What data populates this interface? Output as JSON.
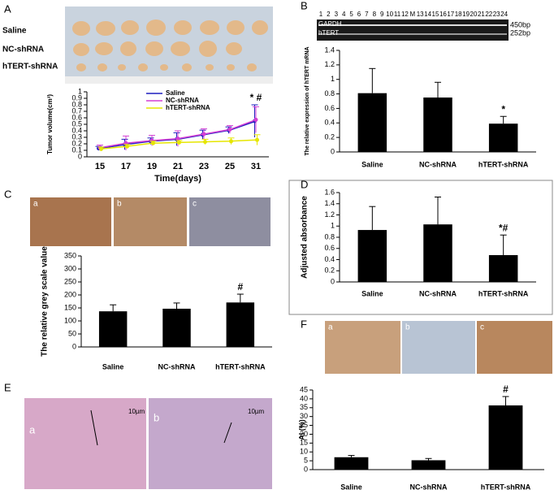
{
  "chart_data": [
    {
      "type": "line",
      "xlabel": "Time(days)",
      "ylabel": "Tumor volume(cm³)",
      "categories": [
        "15",
        "17",
        "19",
        "21",
        "23",
        "25",
        "31"
      ],
      "ylim": [
        0,
        1
      ],
      "yticks": [
        0,
        0.1,
        0.2,
        0.3,
        0.4,
        0.5,
        0.6,
        0.7,
        0.8,
        0.9,
        1
      ],
      "series": [
        {
          "name": "Saline",
          "color": "#1f1fbf",
          "values": [
            0.13,
            0.19,
            0.24,
            0.27,
            0.34,
            0.41,
            0.55
          ],
          "errors": [
            0.03,
            0.08,
            0.05,
            0.1,
            0.07,
            0.05,
            0.25
          ]
        },
        {
          "name": "NC-shRNA",
          "color": "#d43fd4",
          "values": [
            0.14,
            0.21,
            0.25,
            0.28,
            0.35,
            0.42,
            0.57
          ],
          "errors": [
            0.04,
            0.11,
            0.08,
            0.12,
            0.08,
            0.06,
            0.2
          ]
        },
        {
          "name": "hTERT-shRNA",
          "color": "#e6e600",
          "values": [
            0.12,
            0.16,
            0.21,
            0.22,
            0.23,
            0.24,
            0.26
          ],
          "errors": [
            0.03,
            0.03,
            0.03,
            0.03,
            0.04,
            0.05,
            0.08
          ]
        }
      ],
      "annotations": [
        null,
        null,
        null,
        null,
        null,
        null,
        "*  #"
      ]
    },
    {
      "type": "bar",
      "ylabel": "The relative expression of hTERT mRNA",
      "categories": [
        "Saline",
        "NC-shRNA",
        "hTERT-shRNA"
      ],
      "values": [
        0.81,
        0.75,
        0.39
      ],
      "errors": [
        0.34,
        0.21,
        0.1
      ],
      "ylim": [
        0,
        1.4
      ],
      "yticks": [
        0,
        0.2,
        0.4,
        0.6,
        0.8,
        1,
        1.2,
        1.4
      ],
      "color": "#000000",
      "annotations": [
        null,
        null,
        "*"
      ]
    },
    {
      "type": "bar",
      "ylabel": "The relative grey scale value",
      "categories": [
        "Saline",
        "NC-shRNA",
        "hTERT-shRNA"
      ],
      "values": [
        137,
        147,
        171
      ],
      "errors": [
        25,
        22,
        32
      ],
      "ylim": [
        0,
        350
      ],
      "yticks": [
        0,
        50,
        100,
        150,
        200,
        250,
        300,
        350
      ],
      "color": "#000000",
      "annotations": [
        null,
        null,
        "#"
      ]
    },
    {
      "type": "bar",
      "ylabel": "Adjusted absorbance",
      "categories": [
        "Saline",
        "NC-shRNA",
        "hTERT-shRNA"
      ],
      "values": [
        0.93,
        1.03,
        0.48
      ],
      "errors": [
        0.42,
        0.49,
        0.36
      ],
      "ylim": [
        0,
        1.6
      ],
      "yticks": [
        0,
        0.2,
        0.4,
        0.6,
        0.8,
        1,
        1.2,
        1.4,
        1.6
      ],
      "color": "#000000",
      "annotations": [
        null,
        null,
        "*#"
      ]
    },
    {
      "type": "bar",
      "ylabel": "AI (%)",
      "categories": [
        "Saline",
        "NC-shRNA",
        "hTERT-shRNA"
      ],
      "values": [
        7,
        5.3,
        36.3
      ],
      "errors": [
        1,
        1,
        5
      ],
      "ylim": [
        0,
        45
      ],
      "yticks": [
        0,
        5,
        10,
        15,
        20,
        25,
        30,
        35,
        40,
        45
      ],
      "color": "#000000",
      "annotations": [
        null,
        null,
        "#"
      ]
    }
  ],
  "panel_labels": [
    "A",
    "B",
    "C",
    "D",
    "E",
    "F"
  ],
  "photo_a": {
    "rows": [
      "Saline",
      "NC-shRNA",
      "hTERT-shRNA"
    ]
  },
  "gel": {
    "lanes": [
      "1",
      "2",
      "3",
      "4",
      "5",
      "6",
      "7",
      "8",
      "9",
      "10",
      "11",
      "12",
      "M",
      "13",
      "14",
      "15",
      "16",
      "17",
      "18",
      "19",
      "20",
      "21",
      "22",
      "23",
      "24"
    ],
    "rows": [
      "GAPDH",
      "hTERT"
    ],
    "sizes": [
      "450bp",
      "252bp"
    ]
  },
  "micro_c": [
    "a",
    "b",
    "c"
  ],
  "micro_e": {
    "labels": [
      "a",
      "b"
    ],
    "scales": [
      "10µm",
      "10µm"
    ]
  },
  "micro_f": [
    "a",
    "b",
    "c"
  ]
}
